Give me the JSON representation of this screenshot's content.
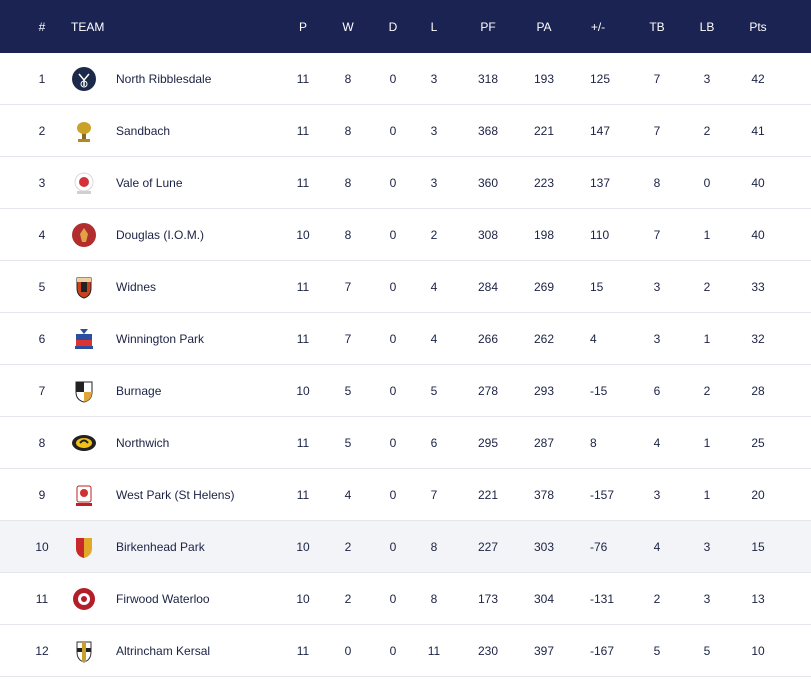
{
  "header": {
    "pos": "#",
    "team": "TEAM",
    "p": "P",
    "w": "W",
    "d": "D",
    "l": "L",
    "pf": "PF",
    "pa": "PA",
    "diff": "+/-",
    "tb": "TB",
    "lb": "LB",
    "pts": "Pts"
  },
  "colors": {
    "header_bg": "#1a2352",
    "row_highlight": "#f3f4f8",
    "text": "#1b2243"
  },
  "rows": [
    {
      "pos": "1",
      "team": "North Ribblesdale",
      "logo": "north-ribblesdale-crest-icon",
      "p": "11",
      "w": "8",
      "d": "0",
      "l": "3",
      "pf": "318",
      "pa": "193",
      "diff": "125",
      "tb": "7",
      "lb": "3",
      "pts": "42"
    },
    {
      "pos": "2",
      "team": "Sandbach",
      "logo": "sandbach-crest-icon",
      "p": "11",
      "w": "8",
      "d": "0",
      "l": "3",
      "pf": "368",
      "pa": "221",
      "diff": "147",
      "tb": "7",
      "lb": "2",
      "pts": "41"
    },
    {
      "pos": "3",
      "team": "Vale of Lune",
      "logo": "vale-of-lune-crest-icon",
      "p": "11",
      "w": "8",
      "d": "0",
      "l": "3",
      "pf": "360",
      "pa": "223",
      "diff": "137",
      "tb": "8",
      "lb": "0",
      "pts": "40"
    },
    {
      "pos": "4",
      "team": "Douglas (I.O.M.)",
      "logo": "douglas-crest-icon",
      "p": "10",
      "w": "8",
      "d": "0",
      "l": "2",
      "pf": "308",
      "pa": "198",
      "diff": "110",
      "tb": "7",
      "lb": "1",
      "pts": "40"
    },
    {
      "pos": "5",
      "team": "Widnes",
      "logo": "widnes-crest-icon",
      "p": "11",
      "w": "7",
      "d": "0",
      "l": "4",
      "pf": "284",
      "pa": "269",
      "diff": "15",
      "tb": "3",
      "lb": "2",
      "pts": "33"
    },
    {
      "pos": "6",
      "team": "Winnington Park",
      "logo": "winnington-park-crest-icon",
      "p": "11",
      "w": "7",
      "d": "0",
      "l": "4",
      "pf": "266",
      "pa": "262",
      "diff": "4",
      "tb": "3",
      "lb": "1",
      "pts": "32"
    },
    {
      "pos": "7",
      "team": "Burnage",
      "logo": "burnage-crest-icon",
      "p": "10",
      "w": "5",
      "d": "0",
      "l": "5",
      "pf": "278",
      "pa": "293",
      "diff": "-15",
      "tb": "6",
      "lb": "2",
      "pts": "28"
    },
    {
      "pos": "8",
      "team": "Northwich",
      "logo": "northwich-crest-icon",
      "p": "11",
      "w": "5",
      "d": "0",
      "l": "6",
      "pf": "295",
      "pa": "287",
      "diff": "8",
      "tb": "4",
      "lb": "1",
      "pts": "25"
    },
    {
      "pos": "9",
      "team": "West Park (St Helens)",
      "logo": "west-park-crest-icon",
      "p": "11",
      "w": "4",
      "d": "0",
      "l": "7",
      "pf": "221",
      "pa": "378",
      "diff": "-157",
      "tb": "3",
      "lb": "1",
      "pts": "20"
    },
    {
      "pos": "10",
      "team": "Birkenhead Park",
      "logo": "birkenhead-park-crest-icon",
      "p": "10",
      "w": "2",
      "d": "0",
      "l": "8",
      "pf": "227",
      "pa": "303",
      "diff": "-76",
      "tb": "4",
      "lb": "3",
      "pts": "15"
    },
    {
      "pos": "11",
      "team": "Firwood Waterloo",
      "logo": "firwood-waterloo-crest-icon",
      "p": "10",
      "w": "2",
      "d": "0",
      "l": "8",
      "pf": "173",
      "pa": "304",
      "diff": "-131",
      "tb": "2",
      "lb": "3",
      "pts": "13"
    },
    {
      "pos": "12",
      "team": "Altrincham Kersal",
      "logo": "altrincham-kersal-crest-icon",
      "p": "11",
      "w": "0",
      "d": "0",
      "l": "11",
      "pf": "230",
      "pa": "397",
      "diff": "-167",
      "tb": "5",
      "lb": "5",
      "pts": "10"
    }
  ]
}
